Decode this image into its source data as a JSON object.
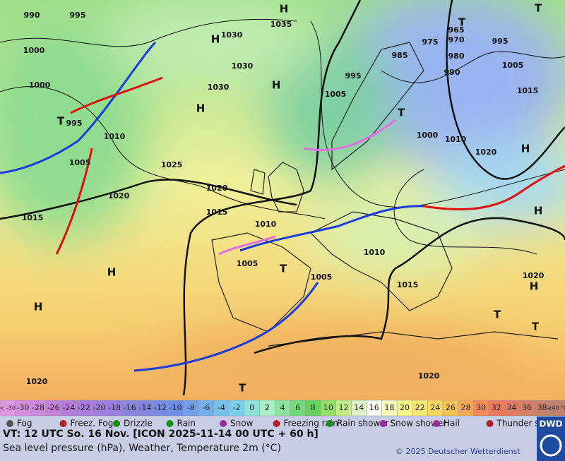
{
  "map": {
    "isobar_labels": [
      "990",
      "995",
      "1000",
      "1000",
      "995",
      "1010",
      "1005",
      "1020",
      "1015",
      "1025",
      "1020",
      "1015",
      "1010",
      "1005",
      "1005",
      "1010",
      "1015",
      "1030",
      "1035",
      "1030",
      "1030",
      "995",
      "1005",
      "985",
      "975",
      "965",
      "970",
      "980",
      "995",
      "990",
      "1005",
      "1015",
      "1000",
      "1010",
      "1020",
      "1020",
      "1020",
      "1020"
    ],
    "pressure_centers": [
      "H",
      "H",
      "H",
      "H",
      "H",
      "H",
      "H",
      "H",
      "H",
      "T",
      "T",
      "T",
      "T",
      "T",
      "T",
      "T",
      "T"
    ]
  },
  "legend": {
    "temperature_scale": [
      "< -30",
      "-30",
      "-28",
      "-26",
      "-24",
      "-22",
      "-20",
      "-18",
      "-16",
      "-14",
      "-12",
      "-10",
      "-8",
      "-6",
      "-4",
      "-2",
      "0",
      "2",
      "4",
      "6",
      "8",
      "10",
      "12",
      "14",
      "16",
      "18",
      "20",
      "22",
      "24",
      "26",
      "28",
      "30",
      "32",
      "34",
      "36",
      "38",
      "≥40 °C"
    ],
    "weather": [
      "Fog",
      "Freez. Fog",
      "Drizzle",
      "Rain",
      "Snow",
      "Freezing rain",
      "Rain shower",
      "Snow shower",
      "Hail",
      "Thunder storm"
    ]
  },
  "footer": {
    "valid_time": "VT: 12 UTC So.  16 Nov. [ICON 2025-11-14  00 UTC + 60 h]",
    "description": "Sea level pressure (hPa), Weather, Temperature 2m (°C)",
    "copyright": "© 2025 Deutscher Wetterdienst",
    "logo": "DWD"
  }
}
